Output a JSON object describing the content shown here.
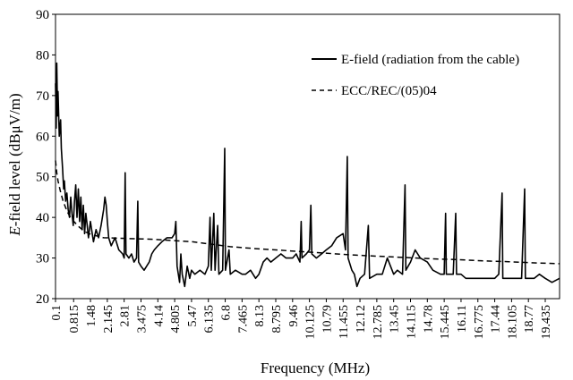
{
  "chart_data": {
    "type": "line",
    "title": "",
    "xlabel": "Frequency  (MHz)",
    "ylabel_prefix": "E",
    "ylabel_rest": "-field level (dBμV/m)",
    "ylim": [
      20,
      90
    ],
    "yticks": [
      20,
      30,
      40,
      50,
      60,
      70,
      80,
      90
    ],
    "xlim": [
      0.1,
      20.0
    ],
    "xtick_labels": [
      "0.1",
      "0.815",
      "1.48",
      "2.145",
      "2.81",
      "3.475",
      "4.14",
      "4.805",
      "5.47",
      "6.135",
      "6.8",
      "7.465",
      "8.13",
      "8.795",
      "9.46",
      "10.125",
      "10.79",
      "11.455",
      "12.12",
      "12.785",
      "13.45",
      "14.115",
      "14.78",
      "15.445",
      "16.11",
      "16.775",
      "17.44",
      "18.105",
      "18.77",
      "19.435"
    ],
    "grid": false,
    "legend_position": "top-right",
    "series": [
      {
        "name": "E-field (radiation from the cable)",
        "style": "solid",
        "color": "#000000",
        "points": [
          [
            0.1,
            73
          ],
          [
            0.13,
            62
          ],
          [
            0.15,
            78
          ],
          [
            0.18,
            65
          ],
          [
            0.2,
            71
          ],
          [
            0.25,
            60
          ],
          [
            0.3,
            64
          ],
          [
            0.33,
            57
          ],
          [
            0.38,
            52
          ],
          [
            0.42,
            47
          ],
          [
            0.45,
            49
          ],
          [
            0.5,
            44
          ],
          [
            0.55,
            46
          ],
          [
            0.6,
            42
          ],
          [
            0.65,
            40
          ],
          [
            0.7,
            45
          ],
          [
            0.75,
            41
          ],
          [
            0.8,
            38
          ],
          [
            0.85,
            44
          ],
          [
            0.9,
            48
          ],
          [
            0.95,
            40
          ],
          [
            1.0,
            47
          ],
          [
            1.05,
            39
          ],
          [
            1.1,
            45
          ],
          [
            1.15,
            37
          ],
          [
            1.2,
            43
          ],
          [
            1.25,
            36
          ],
          [
            1.3,
            41
          ],
          [
            1.35,
            38
          ],
          [
            1.4,
            35
          ],
          [
            1.48,
            39
          ],
          [
            1.55,
            36
          ],
          [
            1.6,
            34
          ],
          [
            1.7,
            37
          ],
          [
            1.8,
            35
          ],
          [
            1.9,
            38
          ],
          [
            2.0,
            42
          ],
          [
            2.05,
            45
          ],
          [
            2.1,
            43
          ],
          [
            2.145,
            39
          ],
          [
            2.2,
            35
          ],
          [
            2.3,
            33
          ],
          [
            2.45,
            35
          ],
          [
            2.6,
            32
          ],
          [
            2.75,
            31
          ],
          [
            2.81,
            30
          ],
          [
            2.85,
            51
          ],
          [
            2.88,
            31
          ],
          [
            3.0,
            30
          ],
          [
            3.1,
            31
          ],
          [
            3.2,
            29
          ],
          [
            3.3,
            30
          ],
          [
            3.35,
            44
          ],
          [
            3.38,
            29
          ],
          [
            3.475,
            28
          ],
          [
            3.6,
            27
          ],
          [
            3.7,
            28
          ],
          [
            3.8,
            29
          ],
          [
            3.9,
            31
          ],
          [
            4.0,
            32
          ],
          [
            4.14,
            33
          ],
          [
            4.3,
            34
          ],
          [
            4.5,
            35
          ],
          [
            4.7,
            35
          ],
          [
            4.805,
            36
          ],
          [
            4.85,
            39
          ],
          [
            4.9,
            28
          ],
          [
            5.0,
            24
          ],
          [
            5.05,
            31
          ],
          [
            5.1,
            26
          ],
          [
            5.2,
            23
          ],
          [
            5.3,
            28
          ],
          [
            5.4,
            25
          ],
          [
            5.47,
            27
          ],
          [
            5.6,
            26
          ],
          [
            5.8,
            27
          ],
          [
            6.0,
            26
          ],
          [
            6.135,
            28
          ],
          [
            6.2,
            40
          ],
          [
            6.25,
            27
          ],
          [
            6.35,
            41
          ],
          [
            6.4,
            27
          ],
          [
            6.5,
            38
          ],
          [
            6.55,
            26
          ],
          [
            6.7,
            27
          ],
          [
            6.78,
            57
          ],
          [
            6.81,
            27
          ],
          [
            6.95,
            32
          ],
          [
            7.0,
            26
          ],
          [
            7.2,
            27
          ],
          [
            7.465,
            26
          ],
          [
            7.6,
            26
          ],
          [
            7.8,
            27
          ],
          [
            8.0,
            25
          ],
          [
            8.13,
            26
          ],
          [
            8.3,
            29
          ],
          [
            8.45,
            30
          ],
          [
            8.6,
            29
          ],
          [
            8.795,
            30
          ],
          [
            9.0,
            31
          ],
          [
            9.2,
            30
          ],
          [
            9.46,
            30
          ],
          [
            9.6,
            31
          ],
          [
            9.75,
            29
          ],
          [
            9.8,
            39
          ],
          [
            9.83,
            30
          ],
          [
            10.0,
            31
          ],
          [
            10.125,
            32
          ],
          [
            10.18,
            43
          ],
          [
            10.22,
            31
          ],
          [
            10.4,
            30
          ],
          [
            10.6,
            31
          ],
          [
            10.79,
            32
          ],
          [
            11.0,
            33
          ],
          [
            11.2,
            35
          ],
          [
            11.455,
            36
          ],
          [
            11.55,
            32
          ],
          [
            11.62,
            55
          ],
          [
            11.65,
            30
          ],
          [
            11.8,
            27
          ],
          [
            11.9,
            26
          ],
          [
            12.0,
            23
          ],
          [
            12.12,
            25
          ],
          [
            12.3,
            26
          ],
          [
            12.45,
            38
          ],
          [
            12.5,
            25
          ],
          [
            12.785,
            26
          ],
          [
            13.0,
            26
          ],
          [
            13.2,
            30
          ],
          [
            13.45,
            26
          ],
          [
            13.6,
            27
          ],
          [
            13.8,
            26
          ],
          [
            13.9,
            48
          ],
          [
            13.93,
            27
          ],
          [
            14.115,
            29
          ],
          [
            14.3,
            32
          ],
          [
            14.5,
            30
          ],
          [
            14.78,
            29
          ],
          [
            15.0,
            27
          ],
          [
            15.3,
            26
          ],
          [
            15.445,
            26
          ],
          [
            15.5,
            41
          ],
          [
            15.53,
            26
          ],
          [
            15.8,
            26
          ],
          [
            15.9,
            41
          ],
          [
            15.93,
            26
          ],
          [
            16.11,
            26
          ],
          [
            16.3,
            25
          ],
          [
            16.5,
            25
          ],
          [
            16.775,
            25
          ],
          [
            17.0,
            25
          ],
          [
            17.2,
            25
          ],
          [
            17.44,
            25
          ],
          [
            17.6,
            26
          ],
          [
            17.73,
            46
          ],
          [
            17.76,
            25
          ],
          [
            18.0,
            25
          ],
          [
            18.105,
            25
          ],
          [
            18.5,
            25
          ],
          [
            18.62,
            47
          ],
          [
            18.65,
            25
          ],
          [
            18.77,
            25
          ],
          [
            19.0,
            25
          ],
          [
            19.2,
            26
          ],
          [
            19.435,
            25
          ],
          [
            19.7,
            24
          ],
          [
            20.0,
            25
          ]
        ]
      },
      {
        "name": "ECC/REC/(05)04",
        "style": "dashed",
        "color": "#000000",
        "points": [
          [
            0.1,
            54
          ],
          [
            0.15,
            51
          ],
          [
            0.2,
            49
          ],
          [
            0.3,
            46.2
          ],
          [
            0.4,
            44
          ],
          [
            0.5,
            42.4
          ],
          [
            0.6,
            41
          ],
          [
            0.75,
            39.5
          ],
          [
            1.0,
            37.8
          ],
          [
            1.25,
            36.5
          ],
          [
            1.5,
            35.8
          ],
          [
            2.0,
            35
          ],
          [
            2.5,
            34.9
          ],
          [
            3.0,
            34.8
          ],
          [
            3.5,
            34.7
          ],
          [
            4.0,
            34.6
          ],
          [
            4.5,
            34.4
          ],
          [
            5.0,
            34.2
          ],
          [
            5.5,
            34.0
          ],
          [
            6.0,
            33.6
          ],
          [
            6.5,
            33.2
          ],
          [
            7.0,
            32.8
          ],
          [
            8.0,
            32.3
          ],
          [
            9.0,
            31.9
          ],
          [
            10.0,
            31.5
          ],
          [
            11.0,
            31.1
          ],
          [
            12.0,
            30.7
          ],
          [
            13.0,
            30.4
          ],
          [
            14.0,
            30.1
          ],
          [
            15.0,
            29.8
          ],
          [
            16.0,
            29.6
          ],
          [
            17.0,
            29.3
          ],
          [
            18.0,
            29.1
          ],
          [
            19.0,
            28.8
          ],
          [
            20.0,
            28.6
          ]
        ]
      }
    ]
  }
}
